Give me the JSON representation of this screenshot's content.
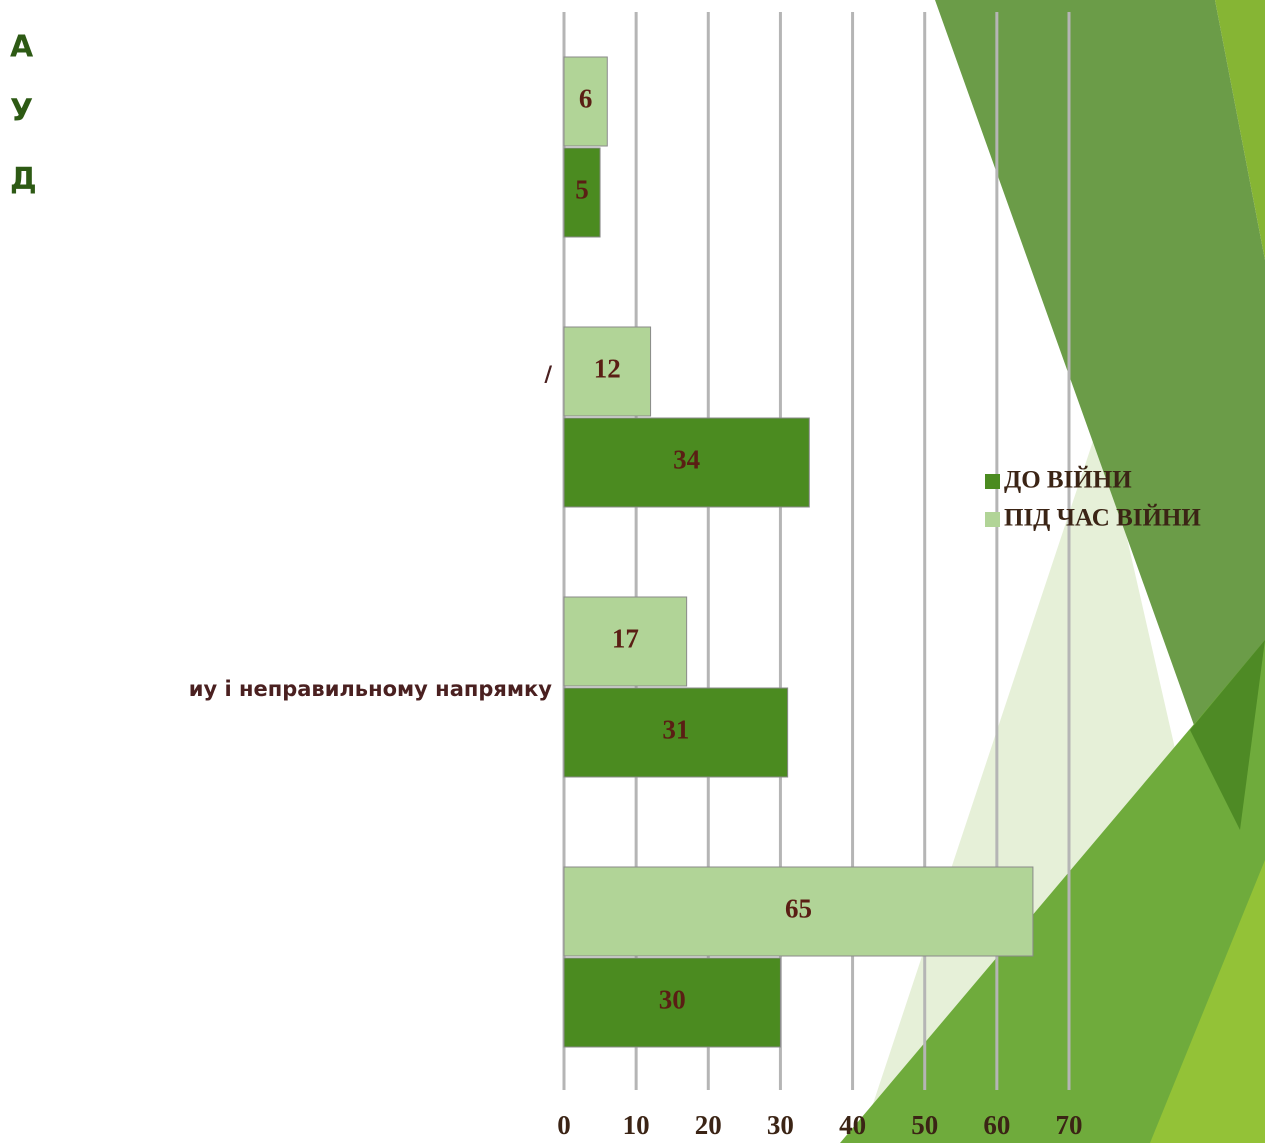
{
  "chart_data": {
    "type": "bar",
    "orientation": "horizontal",
    "title_lines": [
      "А",
      "У",
      "Д"
    ],
    "categories": [
      null,
      "/",
      "иу і неправильному напрямку",
      null
    ],
    "series": [
      {
        "name": "ДО ВІЙНИ",
        "color": "#4b8b20",
        "values": [
          5,
          34,
          31,
          30
        ]
      },
      {
        "name": "ПІД ЧАС ВІЙНИ",
        "color": "#b1d497",
        "values": [
          6,
          12,
          17,
          65
        ]
      }
    ],
    "xlim": [
      0,
      70
    ],
    "xticks": [
      0,
      10,
      20,
      30,
      40,
      50,
      60,
      70
    ],
    "grid": true
  }
}
